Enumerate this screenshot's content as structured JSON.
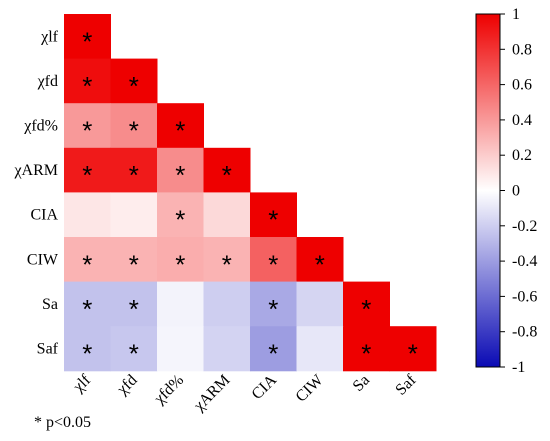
{
  "chart_data": {
    "type": "heatmap",
    "title": "",
    "variables": [
      "χlf",
      "χfd",
      "χfd%",
      "χARM",
      "CIA",
      "CIW",
      "Sa",
      "Saf"
    ],
    "matrix": [
      [
        1.0
      ],
      [
        0.95,
        1.0
      ],
      [
        0.4,
        0.45,
        1.0
      ],
      [
        0.9,
        0.9,
        0.45,
        1.0
      ],
      [
        0.1,
        0.07,
        0.3,
        0.15,
        1.0
      ],
      [
        0.3,
        0.3,
        0.32,
        0.3,
        0.62,
        1.0
      ],
      [
        -0.25,
        -0.25,
        -0.05,
        -0.2,
        -0.35,
        -0.17,
        1.0
      ],
      [
        -0.25,
        -0.23,
        -0.04,
        -0.18,
        -0.4,
        -0.1,
        1.0,
        1.0
      ]
    ],
    "significant": [
      [
        true
      ],
      [
        true,
        true
      ],
      [
        true,
        true,
        true
      ],
      [
        true,
        true,
        true,
        true
      ],
      [
        false,
        false,
        true,
        false,
        true
      ],
      [
        true,
        true,
        true,
        true,
        true,
        true
      ],
      [
        true,
        true,
        false,
        false,
        true,
        false,
        true
      ],
      [
        true,
        true,
        false,
        false,
        true,
        false,
        true,
        true
      ]
    ],
    "significance_symbol": "*",
    "colorbar": {
      "range": [
        -1,
        1
      ],
      "ticks": [
        "1",
        "0.8",
        "0.6",
        "0.4",
        "0.2",
        "0",
        "-0.2",
        "-0.4",
        "-0.6",
        "-0.8",
        "-1"
      ],
      "colors": {
        "low": "#0a0ab4",
        "mid": "#ffffff",
        "high": "#ee0000"
      }
    },
    "footnote": "* p<0.05"
  }
}
